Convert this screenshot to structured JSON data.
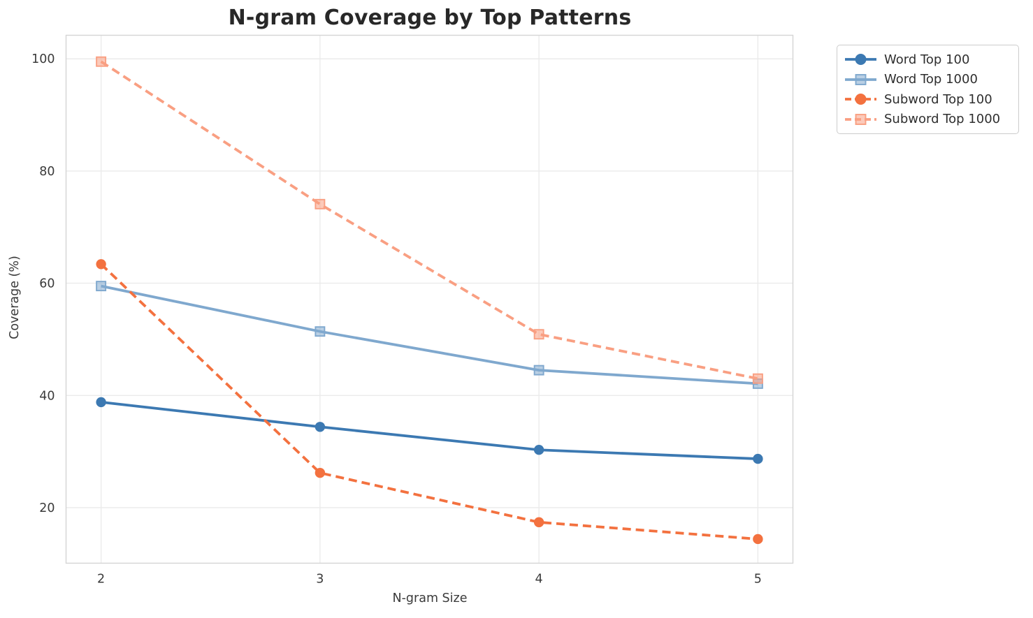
{
  "title": "N-gram Coverage by Top Patterns",
  "chart_data": {
    "type": "line",
    "title": "N-gram Coverage by Top Patterns",
    "xlabel": "N-gram Size",
    "ylabel": "Coverage (%)",
    "x": [
      2,
      3,
      4,
      5
    ],
    "xtick_labels": [
      "2",
      "3",
      "4",
      "5"
    ],
    "ytick_values": [
      20,
      40,
      60,
      80,
      100
    ],
    "ytick_labels": [
      "20",
      "40",
      "60",
      "80",
      "100"
    ],
    "xlim": [
      1.84,
      5.16
    ],
    "ylim": [
      10.1,
      104.2
    ],
    "grid": true,
    "legend_position": "outside-upper-right",
    "series": [
      {
        "name": "Word Top 100",
        "values": [
          38.8,
          34.4,
          30.3,
          28.7
        ],
        "color": "#3c79b2",
        "linestyle": "solid",
        "marker": "circle"
      },
      {
        "name": "Word Top 1000",
        "values": [
          59.5,
          51.4,
          44.5,
          42.1
        ],
        "color": "#7fa8ce",
        "linestyle": "solid",
        "marker": "square"
      },
      {
        "name": "Subword Top 100",
        "values": [
          63.4,
          26.2,
          17.4,
          14.4
        ],
        "color": "#f3713f",
        "linestyle": "dashed",
        "marker": "circle"
      },
      {
        "name": "Subword Top 1000",
        "values": [
          99.5,
          74.1,
          50.9,
          43.0
        ],
        "color": "#f99f82",
        "linestyle": "dashed",
        "marker": "square"
      }
    ],
    "style": {
      "grid_color": "#ebebeb",
      "spine_color": "#d5d5d5",
      "tick_label_color": "#3a3a3a",
      "line_width": 3.8,
      "dash_pattern": "12 7"
    }
  }
}
